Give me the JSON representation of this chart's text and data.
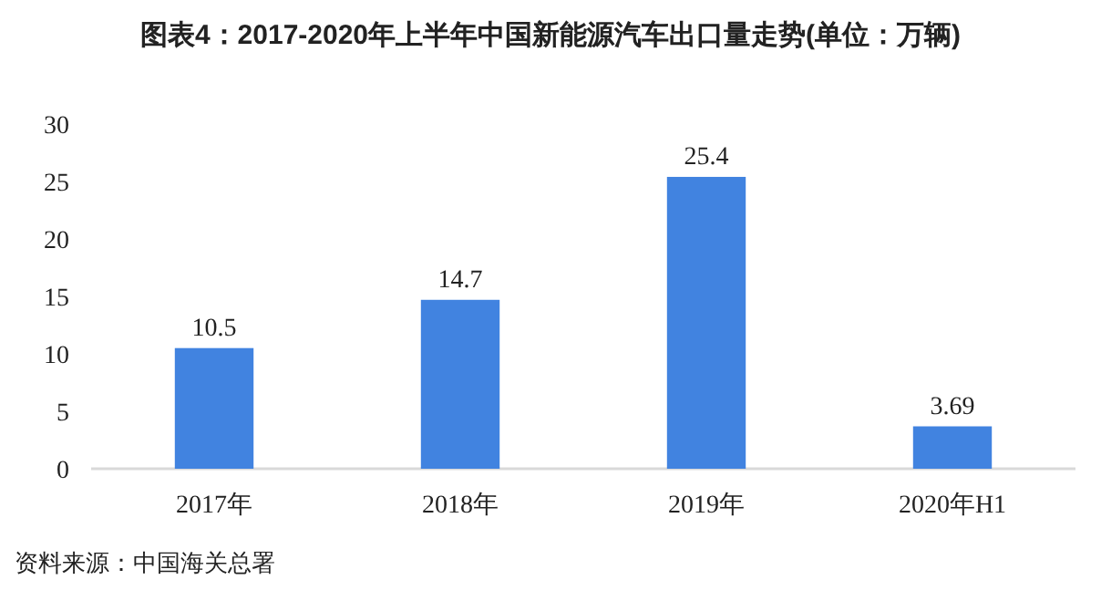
{
  "chart_data": {
    "type": "bar",
    "title": "图表4：2017-2020年上半年中国新能源汽车出口量走势(单位：万辆)",
    "categories": [
      "2017年",
      "2018年",
      "2019年",
      "2020年H1"
    ],
    "values": [
      10.5,
      14.7,
      25.4,
      3.69
    ],
    "color": "#4183e0",
    "ylim": [
      0,
      30
    ],
    "yticks": [
      0,
      5,
      10,
      15,
      20,
      25,
      30
    ],
    "grid": false,
    "data_labels": true,
    "annotations": [
      "资料来源：中国海关总署"
    ]
  }
}
